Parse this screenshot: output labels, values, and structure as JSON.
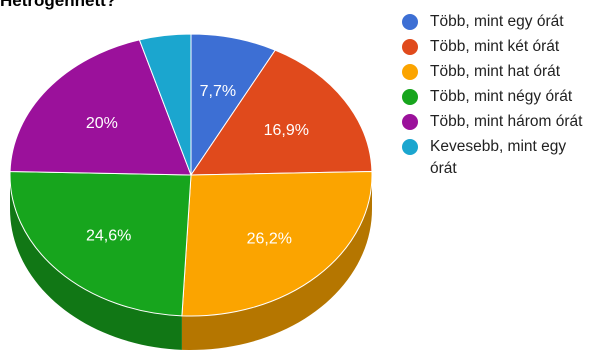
{
  "chart_data": {
    "type": "pie",
    "title": "Hetrögennett?",
    "slices": [
      {
        "label": "Több, mint egy órát",
        "value": 7.7,
        "display": "7,7%",
        "color": "#3d6fd4"
      },
      {
        "label": "Több, mint két órát",
        "value": 16.9,
        "display": "16,9%",
        "color": "#e04a1c"
      },
      {
        "label": "Több, mint hat órát",
        "value": 26.2,
        "display": "26,2%",
        "color": "#fba400"
      },
      {
        "label": "Több, mint négy órát",
        "value": 24.6,
        "display": "24,6%",
        "color": "#17a51d"
      },
      {
        "label": "Több, mint három órát",
        "value": 20,
        "display": "20%",
        "color": "#9b119b"
      },
      {
        "label": "Kevesebb, mint egy órát",
        "value": 4.6,
        "display": "",
        "color": "#1ba6cf"
      }
    ],
    "legend": {
      "position": "right",
      "entries": [
        {
          "text": "Több, mint egy órát",
          "color": "#3d6fd4"
        },
        {
          "text": "Több, mint két órát",
          "color": "#e04a1c"
        },
        {
          "text": "Több, mint hat órát",
          "color": "#fba400"
        },
        {
          "text": "Több, mint négy órát",
          "color": "#17a51d"
        },
        {
          "text": "Több, mint három órát",
          "color": "#9b119b"
        },
        {
          "text": "Kevesebb, mint egy órát",
          "color": "#1ba6cf"
        }
      ]
    }
  }
}
